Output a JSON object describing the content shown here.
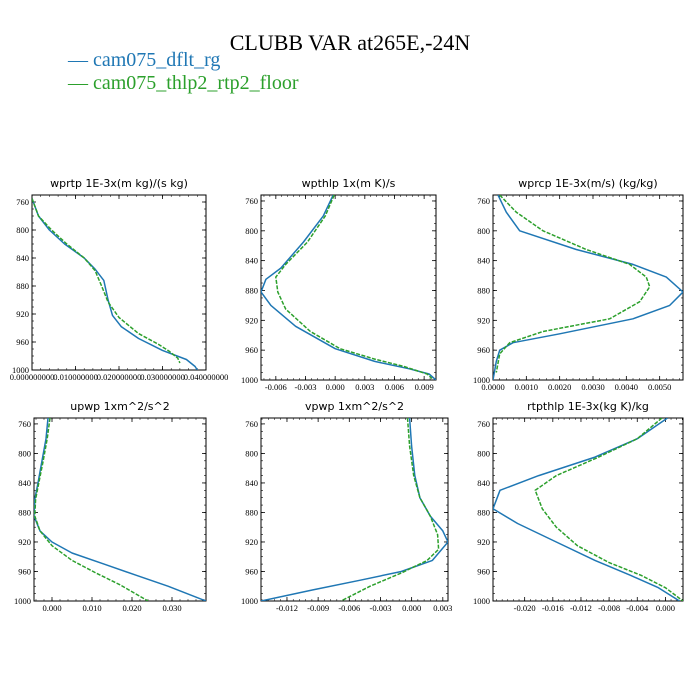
{
  "title": "CLUBB VAR at265E,-24N",
  "legend": [
    {
      "label": "cam075_dflt_rg",
      "color": "#1f77b4"
    },
    {
      "label": "cam075_thlp2_rtp2_floor",
      "color": "#2ca02c"
    }
  ],
  "chart_data": [
    {
      "type": "line",
      "title": "wprtp  1E-3x(m kg)/(s kg)",
      "xlim": [
        0.0,
        0.04
      ],
      "ylim": [
        1000,
        750
      ],
      "xticks": [
        0.0,
        0.01,
        0.02,
        0.03,
        0.04
      ],
      "xtick_labels": [
        "0.000000000",
        "0.010000000",
        "0.020000000",
        "0.030000000",
        "0.040000000"
      ],
      "yticks": [
        760,
        800,
        840,
        880,
        920,
        960,
        1000
      ],
      "series": [
        {
          "name": "cam075_dflt_rg",
          "color": "#1f77b4",
          "dash": false,
          "x": [
            0.0,
            0.0015,
            0.004,
            0.0075,
            0.012,
            0.0145,
            0.0165,
            0.0175,
            0.0185,
            0.0205,
            0.0245,
            0.03,
            0.0355,
            0.0375,
            0.038
          ],
          "y": [
            755,
            780,
            800,
            820,
            840,
            856,
            872,
            900,
            922,
            938,
            955,
            972,
            985,
            995,
            1000
          ]
        },
        {
          "name": "cam075_thlp2_rtp2_floor",
          "color": "#2ca02c",
          "dash": true,
          "x": [
            0.0,
            0.0015,
            0.0045,
            0.008,
            0.012,
            0.0145,
            0.016,
            0.0175,
            0.02,
            0.0245,
            0.029,
            0.0315,
            0.0335,
            0.034
          ],
          "y": [
            755,
            780,
            800,
            820,
            840,
            858,
            880,
            903,
            925,
            948,
            963,
            973,
            983,
            990
          ]
        }
      ]
    },
    {
      "type": "line",
      "title": "wpthlp  1x(m K)/s",
      "xlim": [
        -0.0075,
        0.0102
      ],
      "ylim": [
        1000,
        752
      ],
      "xticks": [
        -0.006,
        -0.003,
        0.0,
        0.003,
        0.006,
        0.009
      ],
      "xtick_labels": [
        "-0.006",
        "-0.003",
        "0.000",
        "0.003",
        "0.006",
        "0.009"
      ],
      "yticks": [
        760,
        800,
        840,
        880,
        920,
        960,
        1000
      ],
      "series": [
        {
          "name": "cam075_dflt_rg",
          "color": "#1f77b4",
          "dash": false,
          "x": [
            -0.0002,
            -0.0012,
            -0.0032,
            -0.0055,
            -0.007,
            -0.0075,
            -0.0065,
            -0.004,
            0.0,
            0.004,
            0.0075,
            0.0095,
            0.0102
          ],
          "y": [
            752,
            780,
            815,
            850,
            865,
            882,
            900,
            928,
            958,
            975,
            985,
            992,
            1000
          ]
        },
        {
          "name": "cam075_thlp2_rtp2_floor",
          "color": "#2ca02c",
          "dash": true,
          "x": [
            -0.0001,
            -0.001,
            -0.0028,
            -0.005,
            -0.006,
            -0.0058,
            -0.005,
            -0.0025,
            0.0005,
            0.004,
            0.007,
            0.0093,
            0.0098
          ],
          "y": [
            752,
            780,
            815,
            845,
            862,
            882,
            905,
            935,
            958,
            972,
            982,
            992,
            998
          ]
        }
      ]
    },
    {
      "type": "line",
      "title": "wprcp  1E-3x(m/s) (kg/kg)",
      "xlim": [
        0.0,
        0.0057
      ],
      "ylim": [
        1000,
        752
      ],
      "xticks": [
        0.0,
        0.001,
        0.002,
        0.003,
        0.004,
        0.005
      ],
      "xtick_labels": [
        "0.0000",
        "0.0010",
        "0.0020",
        "0.0030",
        "0.0040",
        "0.0050"
      ],
      "yticks": [
        760,
        800,
        840,
        880,
        920,
        960,
        1000
      ],
      "series": [
        {
          "name": "cam075_dflt_rg",
          "color": "#1f77b4",
          "dash": false,
          "x": [
            0.00015,
            0.0004,
            0.0008,
            0.0025,
            0.0042,
            0.0052,
            0.0057,
            0.0053,
            0.0042,
            0.002,
            0.0006,
            0.0002,
            0.0001,
            0.0
          ],
          "y": [
            752,
            775,
            800,
            825,
            845,
            862,
            882,
            900,
            918,
            938,
            950,
            960,
            975,
            1000
          ]
        },
        {
          "name": "cam075_thlp2_rtp2_floor",
          "color": "#2ca02c",
          "dash": true,
          "x": [
            0.0002,
            0.0007,
            0.0015,
            0.0028,
            0.0041,
            0.0046,
            0.0047,
            0.0044,
            0.0035,
            0.0015,
            0.0005,
            0.0002,
            0.0001
          ],
          "y": [
            752,
            775,
            800,
            825,
            845,
            862,
            875,
            895,
            918,
            935,
            950,
            965,
            990
          ]
        }
      ]
    },
    {
      "type": "line",
      "title": "upwp  1xm^2/s^2",
      "xlim": [
        -0.0045,
        0.0385
      ],
      "ylim": [
        1000,
        752
      ],
      "xticks": [
        0.0,
        0.01,
        0.02,
        0.03
      ],
      "xtick_labels": [
        "0.000",
        "0.010",
        "0.020",
        "0.030"
      ],
      "yticks": [
        760,
        800,
        840,
        880,
        920,
        960,
        1000
      ],
      "series": [
        {
          "name": "cam075_dflt_rg",
          "color": "#1f77b4",
          "dash": false,
          "x": [
            -0.001,
            -0.0015,
            -0.0025,
            -0.0035,
            -0.0043,
            -0.0045,
            -0.003,
            0.0,
            0.005,
            0.013,
            0.021,
            0.029,
            0.0385
          ],
          "y": [
            752,
            780,
            810,
            840,
            862,
            885,
            905,
            920,
            935,
            950,
            965,
            980,
            1000
          ]
        },
        {
          "name": "cam075_thlp2_rtp2_floor",
          "color": "#2ca02c",
          "dash": true,
          "x": [
            -0.0005,
            -0.0012,
            -0.0022,
            -0.0033,
            -0.0041,
            -0.0043,
            -0.003,
            0.0,
            0.005,
            0.011,
            0.017,
            0.024
          ],
          "y": [
            752,
            780,
            810,
            840,
            862,
            885,
            905,
            925,
            945,
            962,
            978,
            1000
          ]
        }
      ]
    },
    {
      "type": "line",
      "title": "vpwp  1xm^2/s^2",
      "xlim": [
        -0.0145,
        0.0035
      ],
      "ylim": [
        1000,
        752
      ],
      "xticks": [
        -0.012,
        -0.009,
        -0.006,
        -0.003,
        0.0,
        0.003
      ],
      "xtick_labels": [
        "-0.012",
        "-0.009",
        "-0.006",
        "-0.003",
        "0.000",
        "0.003"
      ],
      "yticks": [
        760,
        800,
        840,
        880,
        920,
        960,
        1000
      ],
      "series": [
        {
          "name": "cam075_dflt_rg",
          "color": "#1f77b4",
          "dash": false,
          "x": [
            -0.0002,
            0.0,
            0.0003,
            0.0008,
            0.0018,
            0.003,
            0.0035,
            0.002,
            -0.001,
            -0.005,
            -0.0095,
            -0.0145
          ],
          "y": [
            752,
            790,
            830,
            860,
            885,
            905,
            920,
            945,
            960,
            972,
            985,
            1000
          ]
        },
        {
          "name": "cam075_thlp2_rtp2_floor",
          "color": "#2ca02c",
          "dash": true,
          "x": [
            -0.0004,
            -0.0002,
            0.0002,
            0.0008,
            0.0018,
            0.0025,
            0.0026,
            0.0015,
            -0.001,
            -0.004,
            -0.0068
          ],
          "y": [
            752,
            790,
            830,
            860,
            885,
            910,
            930,
            945,
            962,
            980,
            1000
          ]
        }
      ]
    },
    {
      "type": "line",
      "title": "rtpthlp  1E-3x(kg K)/kg",
      "xlim": [
        -0.0245,
        0.0025
      ],
      "ylim": [
        1000,
        752
      ],
      "xticks": [
        -0.02,
        -0.016,
        -0.012,
        -0.008,
        -0.004,
        0.0
      ],
      "xtick_labels": [
        "-0.020",
        "-0.016",
        "-0.012",
        "-0.008",
        "-0.004",
        "0.000"
      ],
      "yticks": [
        760,
        800,
        840,
        880,
        920,
        960,
        1000
      ],
      "series": [
        {
          "name": "cam075_dflt_rg",
          "color": "#1f77b4",
          "dash": false,
          "x": [
            0.0003,
            -0.004,
            -0.01,
            -0.018,
            -0.0235,
            -0.0245,
            -0.021,
            -0.0155,
            -0.01,
            -0.005,
            -0.001,
            0.002
          ],
          "y": [
            752,
            780,
            805,
            830,
            850,
            875,
            895,
            920,
            945,
            965,
            982,
            1000
          ]
        },
        {
          "name": "cam075_thlp2_rtp2_floor",
          "color": "#2ca02c",
          "dash": true,
          "x": [
            -0.0005,
            -0.004,
            -0.0095,
            -0.0155,
            -0.0185,
            -0.0175,
            -0.0155,
            -0.0125,
            -0.008,
            -0.0035,
            0.0,
            0.0025
          ],
          "y": [
            752,
            780,
            805,
            830,
            850,
            875,
            900,
            925,
            948,
            965,
            982,
            1000
          ]
        }
      ]
    }
  ]
}
